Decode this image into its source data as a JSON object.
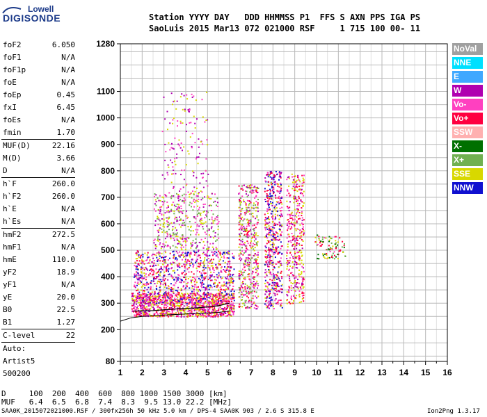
{
  "logo": {
    "line1": "Lowell",
    "line2": "DIGISONDE"
  },
  "header": {
    "row1": "Station YYYY DAY   DDD HHMMSS P1  FFS S AXN PPS IGA PS",
    "row2": "SaoLuis 2015 Mar13 072 021000 RSF     1 715 100 00- 11"
  },
  "params": [
    [
      {
        "label": "foF2",
        "value": "6.050"
      },
      {
        "label": "foF1",
        "value": "N/A"
      },
      {
        "label": "foF1p",
        "value": "N/A"
      },
      {
        "label": "foE",
        "value": "N/A"
      },
      {
        "label": "foEp",
        "value": "0.45"
      },
      {
        "label": "fxI",
        "value": "6.45"
      },
      {
        "label": "foEs",
        "value": "N/A"
      },
      {
        "label": "fmin",
        "value": "1.70"
      }
    ],
    [
      {
        "label": "MUF(D)",
        "value": "22.16"
      },
      {
        "label": "M(D)",
        "value": "3.66"
      },
      {
        "label": "D",
        "value": "N/A"
      }
    ],
    [
      {
        "label": "h`F",
        "value": "260.0"
      },
      {
        "label": "h`F2",
        "value": "260.0"
      },
      {
        "label": "h`E",
        "value": "N/A"
      },
      {
        "label": "h`Es",
        "value": "N/A"
      }
    ],
    [
      {
        "label": "hmF2",
        "value": "272.5"
      },
      {
        "label": "hmF1",
        "value": "N/A"
      },
      {
        "label": "hmE",
        "value": "110.0"
      },
      {
        "label": "yF2",
        "value": "18.9"
      },
      {
        "label": "yF1",
        "value": "N/A"
      },
      {
        "label": "yE",
        "value": "20.0"
      },
      {
        "label": "B0",
        "value": "22.5"
      },
      {
        "label": "B1",
        "value": "1.27"
      }
    ],
    [
      {
        "label": "C-level",
        "value": "22"
      }
    ],
    [
      {
        "label": "Auto:",
        "value": ""
      },
      {
        "label": "Artist5",
        "value": ""
      },
      {
        "label": "500200",
        "value": ""
      }
    ]
  ],
  "footer": {
    "d_row": "D     100  200  400  600  800 1000 1500 3000 [km]",
    "muf_row": "MUF   6.4  6.5  6.8  7.4  8.3  9.5 13.0 22.2 [MHz]",
    "file_info": "SAA0K_2015072021000.RSF / 300fx256h 50 kHz 5.0 km / DPS-4 SAA0K 903 / 2.6 S 315.8 E",
    "version": "Ion2Png 1.3.17"
  },
  "legend": [
    {
      "label": "NoVal",
      "color": "#a0a0a0"
    },
    {
      "label": "NNE",
      "color": "#00e0ff"
    },
    {
      "label": "E",
      "color": "#40a8ff"
    },
    {
      "label": "W",
      "color": "#b000b0"
    },
    {
      "label": "Vo-",
      "color": "#ff40c0"
    },
    {
      "label": "Vo+",
      "color": "#ff0040"
    },
    {
      "label": "SSW",
      "color": "#ffb0b0"
    },
    {
      "label": "X-",
      "color": "#007000"
    },
    {
      "label": "X+",
      "color": "#70b050"
    },
    {
      "label": "SSE",
      "color": "#d8d800"
    },
    {
      "label": "NNW",
      "color": "#1010d0"
    }
  ],
  "chart_data": {
    "type": "scatter",
    "xlim": [
      1,
      16
    ],
    "ylim": [
      80,
      1280
    ],
    "x_ticks": [
      1,
      2,
      3,
      4,
      5,
      6,
      7,
      8,
      9,
      10,
      11,
      12,
      13,
      14,
      15,
      16
    ],
    "y_ticks": [
      80,
      200,
      300,
      400,
      500,
      600,
      700,
      800,
      900,
      1000,
      1100,
      1280
    ],
    "grid": true,
    "x_unit": "MHz",
    "y_unit": "km",
    "profile_curve": [
      [
        1,
        232
      ],
      [
        1.5,
        245
      ],
      [
        2,
        250
      ],
      [
        3,
        255
      ],
      [
        4,
        259
      ],
      [
        5,
        263
      ],
      [
        5.5,
        265
      ],
      [
        6,
        270
      ],
      [
        6.05,
        272
      ]
    ],
    "trace_region": [
      [
        1.6,
        270
      ],
      [
        2.5,
        272
      ],
      [
        3.5,
        278
      ],
      [
        4.5,
        282
      ],
      [
        5.5,
        290
      ],
      [
        6.0,
        300
      ]
    ],
    "echo_clusters": [
      {
        "name": "F-layer base",
        "x": [
          1.5,
          6.2
        ],
        "y": [
          250,
          340
        ],
        "colors": [
          "#ff0040",
          "#b000b0",
          "#d8d800",
          "#ff40c0"
        ],
        "density": 0.85
      },
      {
        "name": "Spread F lower",
        "x": [
          1.6,
          6.2
        ],
        "y": [
          300,
          500
        ],
        "colors": [
          "#d8d800",
          "#ff40c0",
          "#b000b0",
          "#ff0040",
          "#1010d0"
        ],
        "density": 0.35
      },
      {
        "name": "Spread F upper",
        "x": [
          2.5,
          5.5
        ],
        "y": [
          500,
          720
        ],
        "colors": [
          "#d8d800",
          "#ff40c0",
          "#b000b0",
          "#70b050"
        ],
        "density": 0.22
      },
      {
        "name": "Spread F high",
        "x": [
          2.9,
          5.0
        ],
        "y": [
          720,
          1100
        ],
        "colors": [
          "#d8d800",
          "#ff40c0",
          "#b000b0"
        ],
        "density": 0.06
      },
      {
        "name": "Band 6.4-7.3",
        "x": [
          6.4,
          7.3
        ],
        "y": [
          280,
          750
        ],
        "colors": [
          "#d8d800",
          "#ff0040",
          "#ff40c0",
          "#b000b0",
          "#70b050"
        ],
        "density": 0.4
      },
      {
        "name": "Band 7.6-8.4",
        "x": [
          7.6,
          8.4
        ],
        "y": [
          280,
          800
        ],
        "colors": [
          "#d8d800",
          "#ff0040",
          "#ff40c0",
          "#b000b0",
          "#1010d0"
        ],
        "density": 0.45
      },
      {
        "name": "Band 8.6-9.4",
        "x": [
          8.6,
          9.4
        ],
        "y": [
          300,
          790
        ],
        "colors": [
          "#d8d800",
          "#ff0040",
          "#ff40c0",
          "#b000b0"
        ],
        "density": 0.35
      },
      {
        "name": "Cluster 10-11",
        "x": [
          9.9,
          11.3
        ],
        "y": [
          470,
          560
        ],
        "colors": [
          "#d8d800",
          "#ff0040",
          "#ff40c0",
          "#007000",
          "#70b050"
        ],
        "density": 0.25
      }
    ]
  }
}
